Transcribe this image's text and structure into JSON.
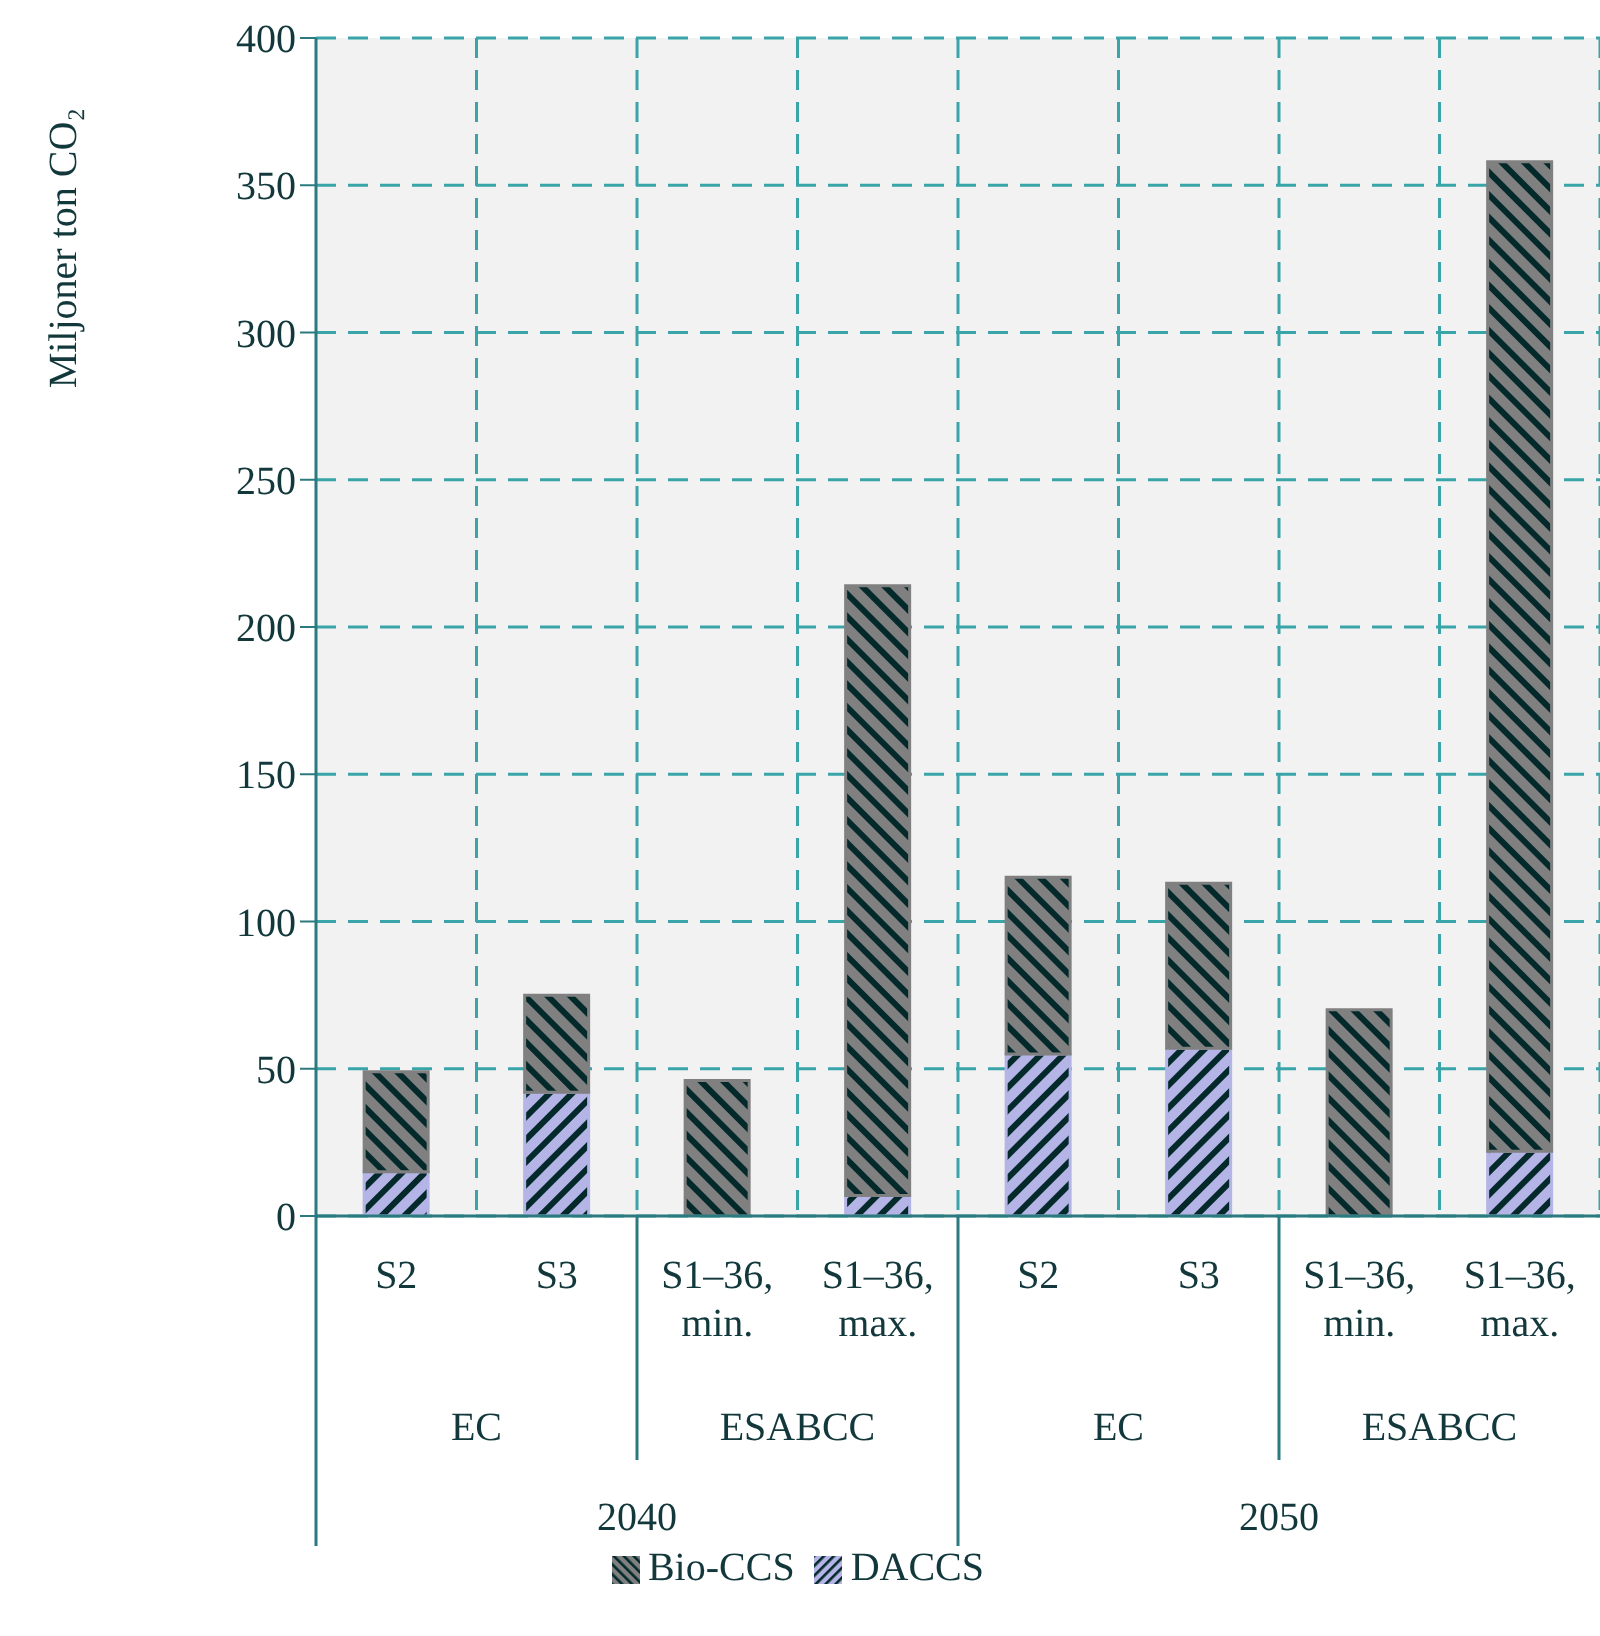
{
  "chart_data": {
    "type": "bar",
    "ylabel": "Miljoner ton CO₂",
    "categories": [
      "S2",
      "S3",
      "S1–36, min.",
      "S1–36, max.",
      "S2",
      "S3",
      "S1–36, min.",
      "S1–36, max."
    ],
    "annotations": [
      "EC",
      "ESABCC",
      "EC",
      "ESABCC",
      "2040",
      "2050"
    ],
    "stacked": true,
    "series": [
      {
        "name": "DACCS",
        "color": "#b4b4e6",
        "values": [
          15,
          42,
          0,
          7,
          55,
          57,
          0,
          22
        ]
      },
      {
        "name": "Bio-CCS",
        "color": "#808080",
        "values": [
          34,
          33,
          46,
          207,
          60,
          56,
          70,
          336
        ]
      }
    ],
    "ylim": [
      0,
      400
    ],
    "yticks": [
      0,
      50,
      100,
      150,
      200,
      250,
      300,
      350,
      400
    ],
    "grid": true,
    "legend": "bottom"
  }
}
